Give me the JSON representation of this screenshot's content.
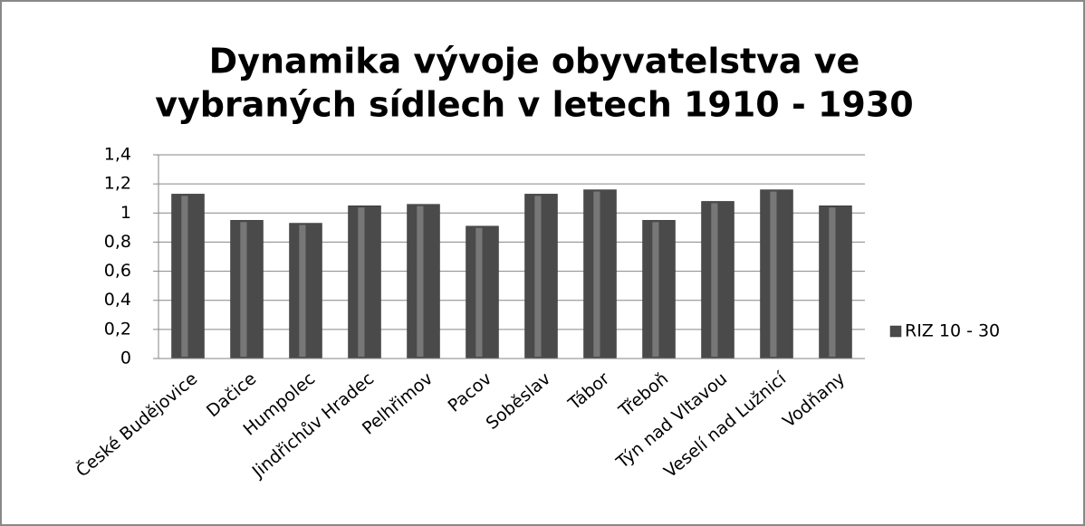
{
  "chart_data": {
    "type": "bar",
    "title": [
      "Dynamika vývoje obyvatelstva ve",
      "vybraných sídlech v letech 1910 - 1930"
    ],
    "categories": [
      "České Budějovice",
      "Dačice",
      "Humpolec",
      "Jindřichův Hradec",
      "Pelhřimov",
      "Pacov",
      "Soběslav",
      "Tábor",
      "Třeboň",
      "Týn nad Vltavou",
      "Veselí nad Lužnicí",
      "Vodňany"
    ],
    "series": [
      {
        "name": "RIZ 10 - 30",
        "color": "#4a4a4a",
        "values": [
          1.13,
          0.95,
          0.93,
          1.05,
          1.06,
          0.91,
          1.13,
          1.16,
          0.95,
          1.08,
          1.16,
          1.05
        ]
      }
    ],
    "ylim": [
      0,
      1.4
    ],
    "yticks": [
      0,
      {
        "value": 0.2,
        "label": "0,2"
      },
      {
        "value": 0.4,
        "label": "0,4"
      },
      {
        "value": 0.6,
        "label": "0,6"
      },
      {
        "value": 0.8,
        "label": "0,8"
      },
      1,
      {
        "value": 1.2,
        "label": "1,2"
      },
      {
        "value": 1.4,
        "label": "1,4"
      }
    ],
    "grid": true,
    "legend": "right"
  }
}
